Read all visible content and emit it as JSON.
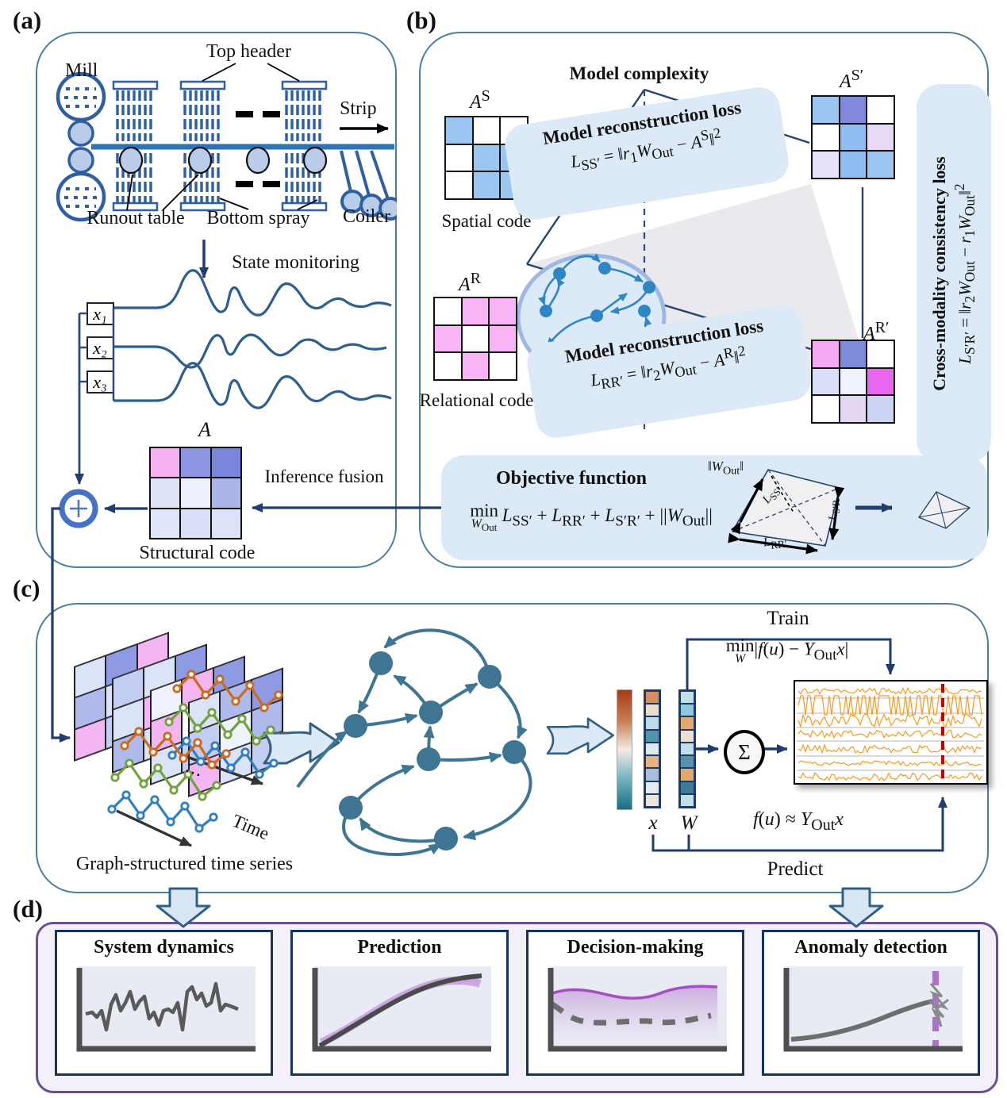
{
  "a": {
    "label": "(a)",
    "mill": "Mill",
    "top_header": "Top header",
    "strip": "Strip",
    "runout_table": "Runout table",
    "bottom_spray": "Bottom spray",
    "coiler": "Coiler",
    "state_monitoring": "State monitoring",
    "signals": [
      "x₁",
      "x₂",
      "x₃"
    ],
    "matrix_label": "A",
    "structural_code": "Structural code",
    "inference_fusion": "Inference fusion",
    "matrix": [
      [
        "#f7b1f3",
        "#8d95e2",
        "#7a86dc"
      ],
      [
        "#dde3f8",
        "#eef1fb",
        "#aab6ea"
      ],
      [
        "#dfe4f8",
        "#d9dff6",
        "#dce2f7"
      ]
    ]
  },
  "b": {
    "label": "(b)",
    "model_complexity": "Model complexity",
    "as_label": "<i>A</i><sup>S</sup>",
    "spatial_code": "Spatial code",
    "ar_label": "<i>A</i><sup>R</sup>",
    "relational_code": "Relational code",
    "asp_label": "<i>A</i><sup>S′</sup>",
    "arp_label": "<i>A</i><sup>R′</sup>",
    "loss_ss_title": "Model reconstruction loss",
    "loss_ss_formula": "<i>L</i><sub>SS′</sub> = ‖<i>r</i><sub>1</sub><i>W</i><sub>Out</sub> − <i>A</i><sup>S</sup>‖<sup>2</sup>",
    "loss_rr_title": "Model reconstruction loss",
    "loss_rr_formula": "<i>L</i><sub>RR′</sub> = ‖<i>r</i><sub>2</sub><i>W</i><sub>Out</sub> − <i>A</i><sup>R</sup>‖<sup>2</sup>",
    "cross_title": "Cross-modality consistency loss",
    "cross_formula": "<i>L</i><sub>S′R′</sub> = ‖<i>r</i><sub>2</sub><i>W</i><sub>Out</sub> − <i>r</i><sub>1</sub><i>W</i><sub>Out</sub>‖<sup>2</sup>",
    "objective_title": "Objective function",
    "objective_formula": "<span class='minun'><span>min</span><span class='u'><i>W</i><sub>Out</sub></span></span>&#8201;<i>L</i><sub>SS′</sub> + <i>L</i><sub>RR′</sub> + <i>L</i><sub>S′R′</sub> + ||<i>W</i><sub>Out</sub>||",
    "tetra": {
      "wout": "‖<i>W</i><sub>Out</sub>‖",
      "lss": "<i>L</i><sub>SS′</sub>",
      "lsr": "<i>L</i><sub>S′R</sub>",
      "lrr": "<i>L</i><sub>RR′</sub>"
    },
    "matrix_s": [
      [
        "#9cc6f2",
        "#ffffff",
        "#ffffff"
      ],
      [
        "#ffffff",
        "#9cc6f2",
        "#9cc6f2"
      ],
      [
        "#ffffff",
        "#9cc6f2",
        "#9cc6f2"
      ]
    ],
    "matrix_r": [
      [
        "#ffffff",
        "#f8b4f4",
        "#f8b4f4"
      ],
      [
        "#f8b4f4",
        "#ffffff",
        "#f8b4f4"
      ],
      [
        "#ffffff",
        "#f8b4f4",
        "#ffffff"
      ]
    ],
    "matrix_sp": [
      [
        "#9cc6f2",
        "#8289dd",
        "#ffffff"
      ],
      [
        "#ffffff",
        "#90bef2",
        "#e8d9f5"
      ],
      [
        "#e4e2f8",
        "#90bef2",
        "#9cc6f2"
      ]
    ],
    "matrix_rp": [
      [
        "#f4aaf2",
        "#7f8cda",
        "#ffffff"
      ],
      [
        "#d9dff7",
        "#eef2fc",
        "#e767f0"
      ],
      [
        "#ffffff",
        "#e3d7f2",
        "#ccd4f4"
      ]
    ]
  },
  "c": {
    "label": "(c)",
    "graph_ts": "Graph-structured time series",
    "time": "Time",
    "dots": "⋯",
    "train": "Train",
    "predict": "Predict",
    "train_formula": "<span class='minun'><span>min</span><span class='u'><i>W</i></span></span>|<i>f</i>(<i>u</i>) − <i>Y</i><sub>Out</sub><i>x</i>|",
    "predict_formula": "<i>f</i>(<i>u</i>) ≈ <i>Y</i><sub>Out</sub><i>x</i>",
    "x_label": "x",
    "w_label": "W",
    "sigma": "Σ",
    "vector_x": [
      "#d98e5f",
      "#ecdcc8",
      "#bcdce8",
      "#4e94ac",
      "#dce9f0",
      "#e7b27c",
      "#a8bedd",
      "#e4ecf4",
      "#ece4d8"
    ],
    "vector_w": [
      "#c2e0ea",
      "#8ecadd",
      "#e2a96e",
      "#ece0d0",
      "#c2e0ea",
      "#5794ac",
      "#e2a96e",
      "#3d7b96",
      "#c2e0ea"
    ],
    "planes": [
      [
        "#dbe3f8",
        "#8e9ae4",
        "#f4b6f2",
        "#aeb9ec",
        "#dbe3f8",
        "#eef2fc",
        "#f4b6f2",
        "#c3cdf2",
        "#dbe3f8"
      ],
      [
        "#c3cdf2",
        "#dbe3f8",
        "#8e9ae4",
        "#dbe3f8",
        "#f4b6f2",
        "#ffffff",
        "#aeb9ec",
        "#dbe3f8",
        "#c3cdf2"
      ],
      [
        "#eef2fc",
        "#f4b6f2",
        "#8e9ae4",
        "#f4b6f2",
        "#ffffff",
        "#c3cdf2",
        "#dbe3f8",
        "#c3cdf2",
        "#dbe3f8"
      ],
      [
        "#dbe3f8",
        "#aeb9ec",
        "#8e9ae4",
        "#c3cdf2",
        "#eef2fc",
        "#aeb9ec",
        "#f4b6f2",
        "#dbe3f8",
        "#c3cdf2"
      ]
    ]
  },
  "d": {
    "label": "(d)",
    "cards": [
      {
        "title": "System dynamics"
      },
      {
        "title": "Prediction"
      },
      {
        "title": "Decision-making"
      },
      {
        "title": "Anomaly detection"
      }
    ]
  },
  "colors": {
    "panel_border": "#4d7e9e",
    "navy": "#1f3d6e",
    "steel_node": "#3e7593",
    "reservoir_node": "#2f86c4",
    "strip_blue": "#2e75b6",
    "comb_blue": "#2e5fa3",
    "trace_orange": "#f59a23",
    "anomaly_red": "#c00000",
    "purple_accent": "#a44fc0",
    "box_blue": "#dce9f6",
    "panel_d_bg": "#f4f0fa",
    "panel_d_border": "#6b4f92"
  }
}
